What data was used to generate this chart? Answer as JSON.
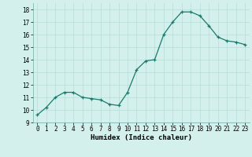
{
  "x": [
    0,
    1,
    2,
    3,
    4,
    5,
    6,
    7,
    8,
    9,
    10,
    11,
    12,
    13,
    14,
    15,
    16,
    17,
    18,
    19,
    20,
    21,
    22,
    23
  ],
  "y": [
    9.6,
    10.2,
    11.0,
    11.4,
    11.4,
    11.0,
    10.9,
    10.8,
    10.45,
    10.35,
    11.4,
    13.2,
    13.9,
    14.0,
    16.0,
    17.0,
    17.8,
    17.8,
    17.5,
    16.7,
    15.8,
    15.5,
    15.4,
    15.2
  ],
  "xlabel": "Humidex (Indice chaleur)",
  "ylim": [
    9,
    18.5
  ],
  "xlim": [
    -0.5,
    23.5
  ],
  "yticks": [
    9,
    10,
    11,
    12,
    13,
    14,
    15,
    16,
    17,
    18
  ],
  "xticks": [
    0,
    1,
    2,
    3,
    4,
    5,
    6,
    7,
    8,
    9,
    10,
    11,
    12,
    13,
    14,
    15,
    16,
    17,
    18,
    19,
    20,
    21,
    22,
    23
  ],
  "line_color": "#1a7a6e",
  "marker": "+",
  "marker_color": "#1a7a6e",
  "bg_color": "#d4f0ec",
  "grid_color": "#b8dcd8",
  "xlabel_fontsize": 6.5,
  "tick_fontsize": 5.5
}
